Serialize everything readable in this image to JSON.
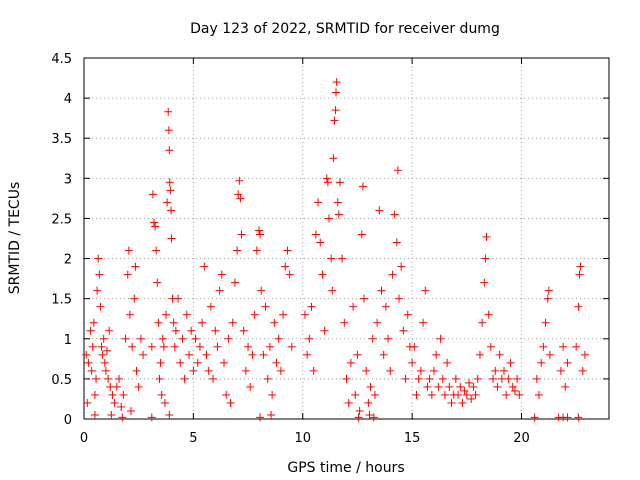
{
  "chart_data": {
    "type": "scatter",
    "title": "Day 123 of 2022, SRMTID for receiver dumg",
    "xlabel": "GPS time / hours",
    "ylabel": "SRMTID / TECUs",
    "xlim": [
      0,
      24
    ],
    "ylim": [
      0,
      4.5
    ],
    "x_ticks": [
      0,
      5,
      10,
      15,
      20
    ],
    "x_tick_labels": [
      "0",
      "5",
      "10",
      "15",
      "20"
    ],
    "y_ticks": [
      0,
      0.5,
      1,
      1.5,
      2,
      2.5,
      3,
      3.5,
      4,
      4.5
    ],
    "y_tick_labels": [
      "0",
      "0.5",
      "1",
      "1.5",
      "2",
      "2.5",
      "3",
      "3.5",
      "4",
      "4.5"
    ],
    "grid": true,
    "marker": "plus",
    "color": "#ff0000",
    "series": [
      {
        "points": [
          [
            0.1,
            0.8
          ],
          [
            0.2,
            0.7
          ],
          [
            0.3,
            1.1
          ],
          [
            0.35,
            0.6
          ],
          [
            0.4,
            0.9
          ],
          [
            0.45,
            1.2
          ],
          [
            0.5,
            0.3
          ],
          [
            0.55,
            0.5
          ],
          [
            0.6,
            1.6
          ],
          [
            0.65,
            2.0
          ],
          [
            0.7,
            1.8
          ],
          [
            0.75,
            1.4
          ],
          [
            0.8,
            0.9
          ],
          [
            0.85,
            0.8
          ],
          [
            0.9,
            1.0
          ],
          [
            0.95,
            0.7
          ],
          [
            1.0,
            0.6
          ],
          [
            1.05,
            0.85
          ],
          [
            1.1,
            0.5
          ],
          [
            1.15,
            1.1
          ],
          [
            1.2,
            0.4
          ],
          [
            1.3,
            0.3
          ],
          [
            1.4,
            0.2
          ],
          [
            1.5,
            0.4
          ],
          [
            1.6,
            0.5
          ],
          [
            1.7,
            0.15
          ],
          [
            1.8,
            0.3
          ],
          [
            1.9,
            1.0
          ],
          [
            2.0,
            1.8
          ],
          [
            2.05,
            2.1
          ],
          [
            2.1,
            1.3
          ],
          [
            2.2,
            0.9
          ],
          [
            2.3,
            1.5
          ],
          [
            2.35,
            1.9
          ],
          [
            2.4,
            0.6
          ],
          [
            2.5,
            0.4
          ],
          [
            2.6,
            1.0
          ],
          [
            2.7,
            0.8
          ],
          [
            0.15,
            0.2
          ],
          [
            0.5,
            0.05
          ],
          [
            1.25,
            0.05
          ],
          [
            1.75,
            0.02
          ],
          [
            2.15,
            0.1
          ],
          [
            3.1,
            0.9
          ],
          [
            3.15,
            2.8
          ],
          [
            3.2,
            2.45
          ],
          [
            3.25,
            2.4
          ],
          [
            3.3,
            2.1
          ],
          [
            3.35,
            1.7
          ],
          [
            3.4,
            1.2
          ],
          [
            3.45,
            0.5
          ],
          [
            3.5,
            0.7
          ],
          [
            3.55,
            0.3
          ],
          [
            3.6,
            1.0
          ],
          [
            3.65,
            0.9
          ],
          [
            3.7,
            0.2
          ],
          [
            3.75,
            1.3
          ],
          [
            3.8,
            2.7
          ],
          [
            3.85,
            3.83
          ],
          [
            3.88,
            3.6
          ],
          [
            3.9,
            3.35
          ],
          [
            3.92,
            2.95
          ],
          [
            3.95,
            2.85
          ],
          [
            3.98,
            2.6
          ],
          [
            4.0,
            2.25
          ],
          [
            4.05,
            1.5
          ],
          [
            4.1,
            1.2
          ],
          [
            4.15,
            0.9
          ],
          [
            4.2,
            1.1
          ],
          [
            4.3,
            1.5
          ],
          [
            4.4,
            0.7
          ],
          [
            4.5,
            1.0
          ],
          [
            4.6,
            0.5
          ],
          [
            4.7,
            1.3
          ],
          [
            4.8,
            0.8
          ],
          [
            4.9,
            1.1
          ],
          [
            5.0,
            0.6
          ],
          [
            3.1,
            0.02
          ],
          [
            3.9,
            0.05
          ],
          [
            5.1,
            1.0
          ],
          [
            5.2,
            0.7
          ],
          [
            5.3,
            0.9
          ],
          [
            5.4,
            1.2
          ],
          [
            5.5,
            1.9
          ],
          [
            5.6,
            0.8
          ],
          [
            5.7,
            0.6
          ],
          [
            5.8,
            1.4
          ],
          [
            5.9,
            0.5
          ],
          [
            6.0,
            1.1
          ],
          [
            6.1,
            0.9
          ],
          [
            6.2,
            1.6
          ],
          [
            6.3,
            1.8
          ],
          [
            6.4,
            0.7
          ],
          [
            6.5,
            0.3
          ],
          [
            6.6,
            1.0
          ],
          [
            6.7,
            0.2
          ],
          [
            6.8,
            1.2
          ],
          [
            6.9,
            1.7
          ],
          [
            7.0,
            2.1
          ],
          [
            7.05,
            2.8
          ],
          [
            7.1,
            2.97
          ],
          [
            7.15,
            2.75
          ],
          [
            7.2,
            2.3
          ],
          [
            7.3,
            1.1
          ],
          [
            7.4,
            0.6
          ],
          [
            7.5,
            0.9
          ],
          [
            7.6,
            0.4
          ],
          [
            7.7,
            0.8
          ],
          [
            7.8,
            1.3
          ],
          [
            7.9,
            2.1
          ],
          [
            8.0,
            2.35
          ],
          [
            8.05,
            2.3
          ],
          [
            8.1,
            1.6
          ],
          [
            8.2,
            0.8
          ],
          [
            8.3,
            1.4
          ],
          [
            8.4,
            0.5
          ],
          [
            8.5,
            0.9
          ],
          [
            8.6,
            0.3
          ],
          [
            8.7,
            1.2
          ],
          [
            8.8,
            0.7
          ],
          [
            8.9,
            1.0
          ],
          [
            9.0,
            0.6
          ],
          [
            9.1,
            1.3
          ],
          [
            9.2,
            1.9
          ],
          [
            9.3,
            2.1
          ],
          [
            9.4,
            1.8
          ],
          [
            9.5,
            0.9
          ],
          [
            8.05,
            0.02
          ],
          [
            8.55,
            0.05
          ],
          [
            10.1,
            1.3
          ],
          [
            10.2,
            0.8
          ],
          [
            10.3,
            1.0
          ],
          [
            10.4,
            1.4
          ],
          [
            10.5,
            0.6
          ],
          [
            10.6,
            2.3
          ],
          [
            10.7,
            2.7
          ],
          [
            10.8,
            2.2
          ],
          [
            10.9,
            1.8
          ],
          [
            11.0,
            1.1
          ],
          [
            11.1,
            3.0
          ],
          [
            11.15,
            2.95
          ],
          [
            11.2,
            2.5
          ],
          [
            11.3,
            2.0
          ],
          [
            11.35,
            1.6
          ],
          [
            11.4,
            3.25
          ],
          [
            11.45,
            3.72
          ],
          [
            11.5,
            3.85
          ],
          [
            11.52,
            4.07
          ],
          [
            11.55,
            4.2
          ],
          [
            11.6,
            2.7
          ],
          [
            11.65,
            2.55
          ],
          [
            11.7,
            2.95
          ],
          [
            11.8,
            2.0
          ],
          [
            11.9,
            1.2
          ],
          [
            12.0,
            0.5
          ],
          [
            12.1,
            0.2
          ],
          [
            12.2,
            0.7
          ],
          [
            12.3,
            1.4
          ],
          [
            12.4,
            0.3
          ],
          [
            12.5,
            0.8
          ],
          [
            12.6,
            0.1
          ],
          [
            12.7,
            2.3
          ],
          [
            12.75,
            2.9
          ],
          [
            12.8,
            1.5
          ],
          [
            12.9,
            0.6
          ],
          [
            13.0,
            0.2
          ],
          [
            13.1,
            0.4
          ],
          [
            13.2,
            1.0
          ],
          [
            13.3,
            0.3
          ],
          [
            13.4,
            1.2
          ],
          [
            13.5,
            2.6
          ],
          [
            13.6,
            1.6
          ],
          [
            13.7,
            0.8
          ],
          [
            13.8,
            1.4
          ],
          [
            13.9,
            1.0
          ],
          [
            14.0,
            0.6
          ],
          [
            14.1,
            1.8
          ],
          [
            14.2,
            2.55
          ],
          [
            14.3,
            2.2
          ],
          [
            14.35,
            3.1
          ],
          [
            14.4,
            1.5
          ],
          [
            14.5,
            1.9
          ],
          [
            14.6,
            1.1
          ],
          [
            14.7,
            0.5
          ],
          [
            14.8,
            1.3
          ],
          [
            14.9,
            0.9
          ],
          [
            12.55,
            0.02
          ],
          [
            13.05,
            0.05
          ],
          [
            13.25,
            0.02
          ],
          [
            15.0,
            0.7
          ],
          [
            15.1,
            0.9
          ],
          [
            15.2,
            0.3
          ],
          [
            15.3,
            0.5
          ],
          [
            15.4,
            0.6
          ],
          [
            15.5,
            1.2
          ],
          [
            15.6,
            1.6
          ],
          [
            15.7,
            0.4
          ],
          [
            15.8,
            0.5
          ],
          [
            15.9,
            0.3
          ],
          [
            16.0,
            0.6
          ],
          [
            16.1,
            0.8
          ],
          [
            16.2,
            0.4
          ],
          [
            16.3,
            1.0
          ],
          [
            16.4,
            0.5
          ],
          [
            16.5,
            0.3
          ],
          [
            16.6,
            0.7
          ],
          [
            16.7,
            0.4
          ],
          [
            16.8,
            0.2
          ],
          [
            16.9,
            0.3
          ],
          [
            17.0,
            0.5
          ],
          [
            17.1,
            0.3
          ],
          [
            17.2,
            0.4
          ],
          [
            17.3,
            0.2
          ],
          [
            17.4,
            0.35
          ],
          [
            17.5,
            0.3
          ],
          [
            17.6,
            0.45
          ],
          [
            17.7,
            0.25
          ],
          [
            17.8,
            0.4
          ],
          [
            17.9,
            0.3
          ],
          [
            18.0,
            0.5
          ],
          [
            18.1,
            0.8
          ],
          [
            18.2,
            1.2
          ],
          [
            18.3,
            1.7
          ],
          [
            18.35,
            2.0
          ],
          [
            18.4,
            2.27
          ],
          [
            18.5,
            1.3
          ],
          [
            18.6,
            0.9
          ],
          [
            18.7,
            0.5
          ],
          [
            18.8,
            0.6
          ],
          [
            18.9,
            0.4
          ],
          [
            19.0,
            0.8
          ],
          [
            19.1,
            0.5
          ],
          [
            19.2,
            0.6
          ],
          [
            19.3,
            0.3
          ],
          [
            19.4,
            0.5
          ],
          [
            19.5,
            0.7
          ],
          [
            19.6,
            0.4
          ],
          [
            19.7,
            0.35
          ],
          [
            19.8,
            0.5
          ],
          [
            19.9,
            0.3
          ],
          [
            20.7,
            0.5
          ],
          [
            20.8,
            0.3
          ],
          [
            20.9,
            0.7
          ],
          [
            21.0,
            0.9
          ],
          [
            21.1,
            1.2
          ],
          [
            21.2,
            1.5
          ],
          [
            21.25,
            1.6
          ],
          [
            21.3,
            0.8
          ],
          [
            21.8,
            0.6
          ],
          [
            21.9,
            0.9
          ],
          [
            22.0,
            0.4
          ],
          [
            22.1,
            0.7
          ],
          [
            22.5,
            0.9
          ],
          [
            22.6,
            1.4
          ],
          [
            22.65,
            1.8
          ],
          [
            22.7,
            1.9
          ],
          [
            22.8,
            0.6
          ],
          [
            22.9,
            0.8
          ],
          [
            20.6,
            0.02
          ],
          [
            21.7,
            0.02
          ],
          [
            21.9,
            0.02
          ],
          [
            22.1,
            0.02
          ],
          [
            22.6,
            0.02
          ]
        ]
      }
    ]
  }
}
